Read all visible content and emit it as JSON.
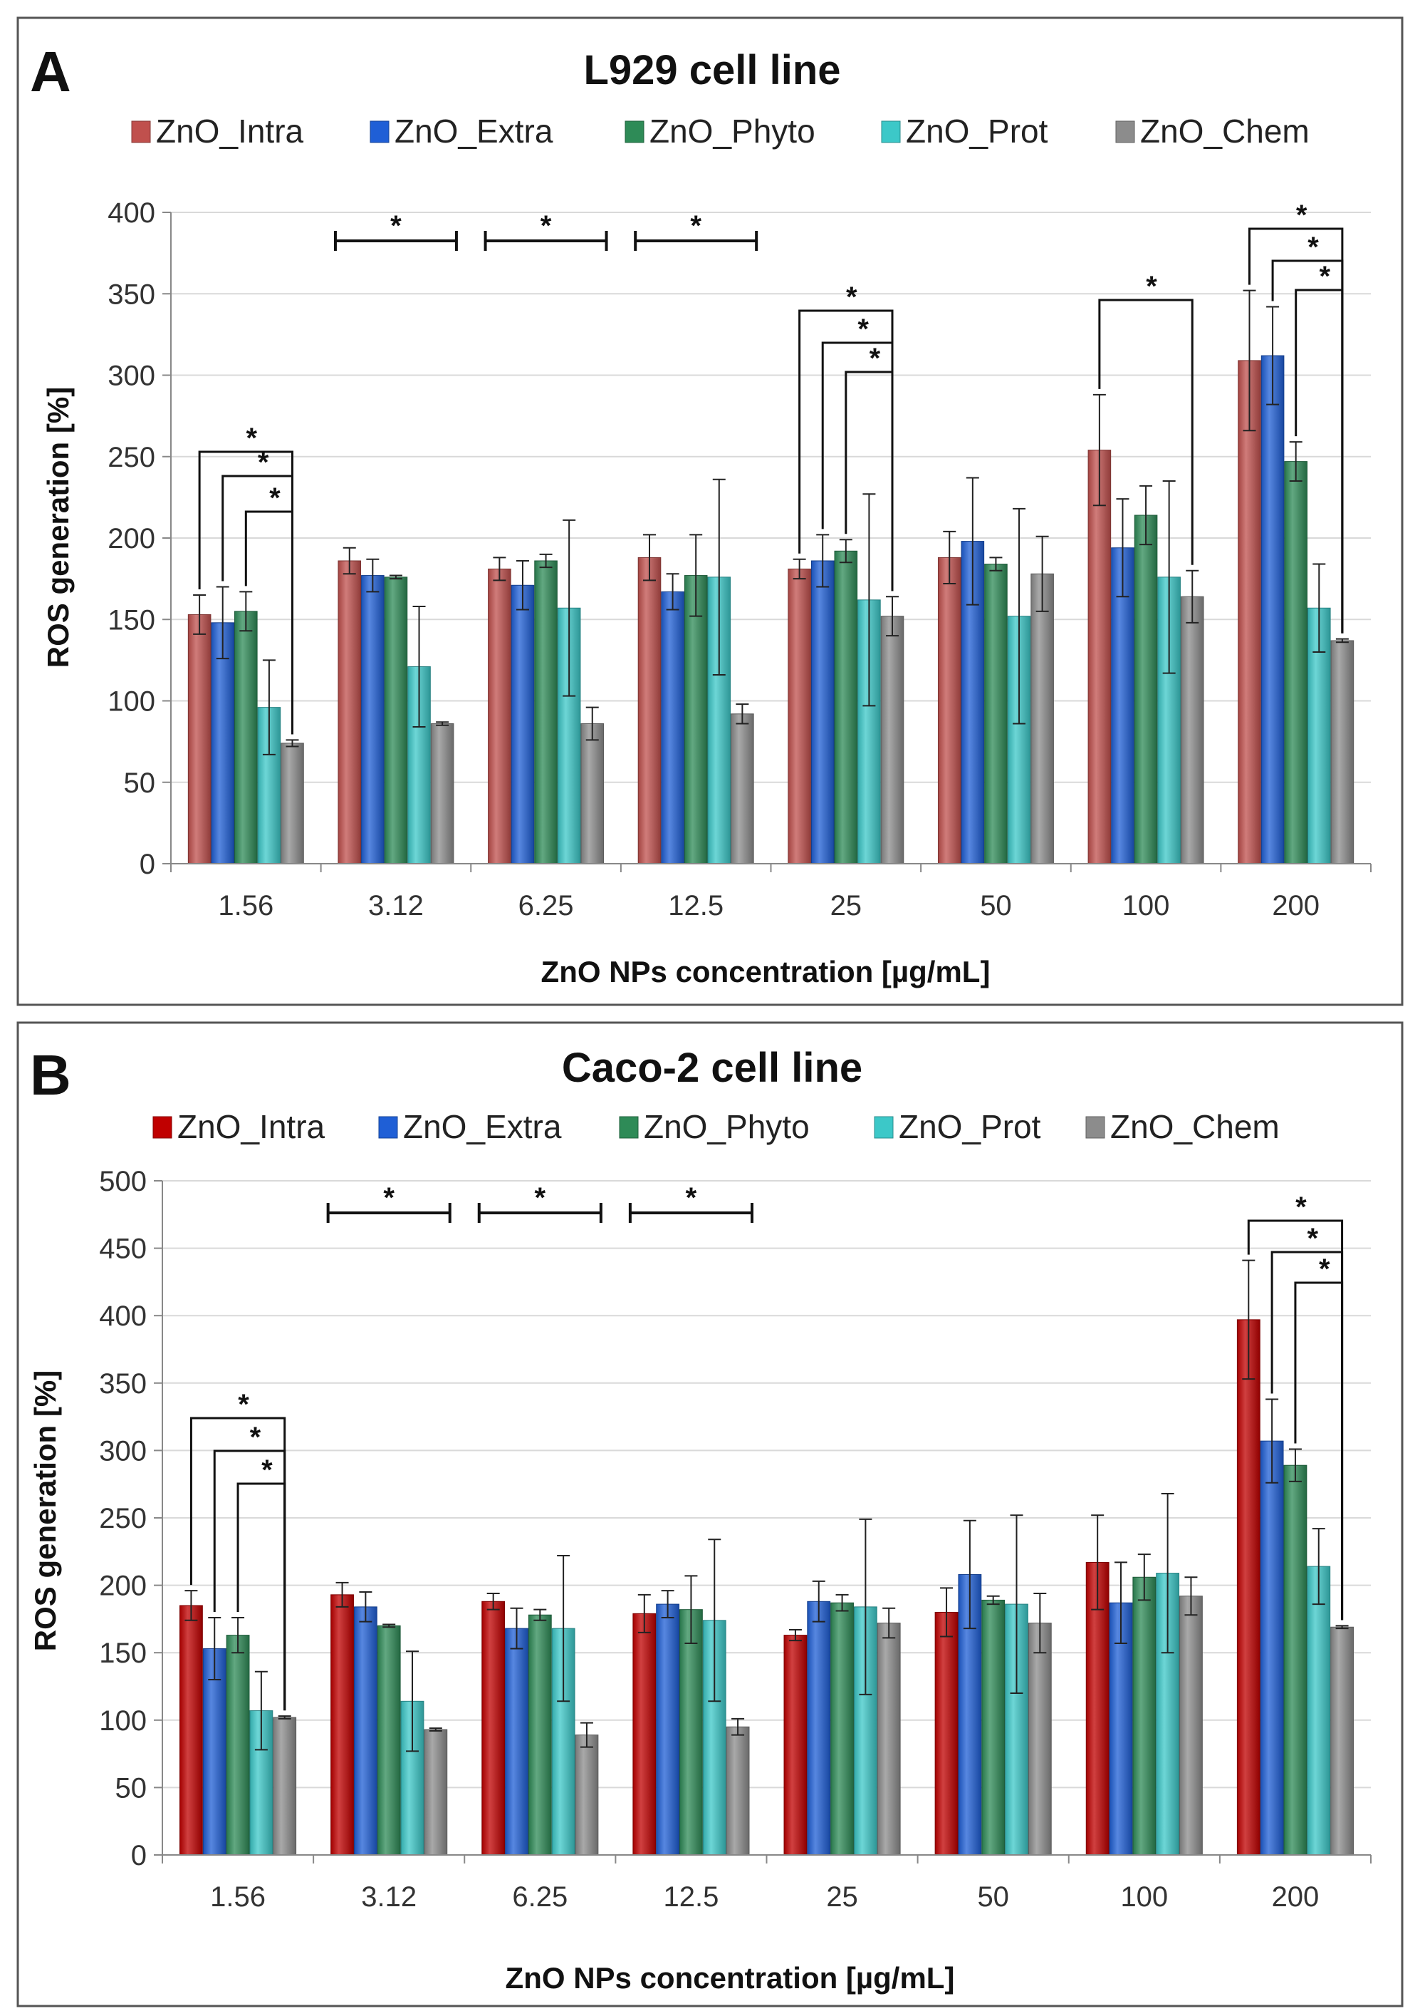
{
  "chart_data": [
    {
      "type": "bar",
      "panel_label": "A",
      "title": "L929 cell line",
      "xlabel": "ZnO NPs concentration [µg/mL]",
      "ylabel": "ROS generation [%]",
      "ylim": [
        0,
        400
      ],
      "yticks": [
        0,
        50,
        100,
        150,
        200,
        250,
        300,
        350,
        400
      ],
      "categories": [
        "1.56",
        "3.12",
        "6.25",
        "12.5",
        "25",
        "50",
        "100",
        "200"
      ],
      "series": [
        {
          "name": "ZnO_Intra",
          "color": "#c0504d",
          "values": [
            153,
            186,
            181,
            188,
            181,
            188,
            254,
            309
          ],
          "errors": [
            12,
            8,
            7,
            14,
            6,
            16,
            34,
            43
          ]
        },
        {
          "name": "ZnO_Extra",
          "color": "#1f5fd6",
          "values": [
            148,
            177,
            171,
            167,
            186,
            198,
            194,
            312
          ],
          "errors": [
            22,
            10,
            15,
            11,
            16,
            39,
            30,
            30
          ]
        },
        {
          "name": "ZnO_Phyto",
          "color": "#2e8b57",
          "values": [
            155,
            176,
            186,
            177,
            192,
            184,
            214,
            247
          ],
          "errors": [
            12,
            1,
            4,
            25,
            7,
            4,
            18,
            12
          ]
        },
        {
          "name": "ZnO_Prot",
          "color": "#3cc8c8",
          "values": [
            96,
            121,
            157,
            176,
            162,
            152,
            176,
            157
          ],
          "errors": [
            29,
            37,
            54,
            60,
            65,
            66,
            59,
            27
          ]
        },
        {
          "name": "ZnO_Chem",
          "color": "#8c8c8c",
          "values": [
            74,
            86,
            86,
            92,
            152,
            178,
            164,
            137
          ],
          "errors": [
            2,
            1,
            10,
            6,
            12,
            23,
            16,
            1
          ]
        }
      ],
      "significance": "*"
    },
    {
      "type": "bar",
      "panel_label": "B",
      "title": "Caco-2 cell line",
      "xlabel": "ZnO NPs concentration [µg/mL]",
      "ylabel": "ROS generation [%]",
      "ylim": [
        0,
        500
      ],
      "yticks": [
        0,
        50,
        100,
        150,
        200,
        250,
        300,
        350,
        400,
        450,
        500
      ],
      "categories": [
        "1.56",
        "3.12",
        "6.25",
        "12.5",
        "25",
        "50",
        "100",
        "200"
      ],
      "series": [
        {
          "name": "ZnO_Intra",
          "color": "#c00000",
          "values": [
            185,
            193,
            188,
            179,
            163,
            180,
            217,
            397
          ],
          "errors": [
            11,
            9,
            6,
            14,
            4,
            18,
            35,
            44
          ]
        },
        {
          "name": "ZnO_Extra",
          "color": "#1f5fd6",
          "values": [
            153,
            184,
            168,
            186,
            188,
            208,
            187,
            307
          ],
          "errors": [
            23,
            11,
            15,
            10,
            15,
            40,
            30,
            31
          ]
        },
        {
          "name": "ZnO_Phyto",
          "color": "#2e8b57",
          "values": [
            163,
            170,
            178,
            182,
            187,
            189,
            206,
            289
          ],
          "errors": [
            13,
            1,
            4,
            25,
            6,
            3,
            17,
            12
          ]
        },
        {
          "name": "ZnO_Prot",
          "color": "#3cc8c8",
          "values": [
            107,
            114,
            168,
            174,
            184,
            186,
            209,
            214
          ],
          "errors": [
            29,
            37,
            54,
            60,
            65,
            66,
            59,
            28
          ]
        },
        {
          "name": "ZnO_Chem",
          "color": "#8c8c8c",
          "values": [
            102,
            93,
            89,
            95,
            172,
            172,
            192,
            169
          ],
          "errors": [
            1,
            1,
            9,
            6,
            11,
            22,
            14,
            1
          ]
        }
      ],
      "significance": "*"
    }
  ]
}
